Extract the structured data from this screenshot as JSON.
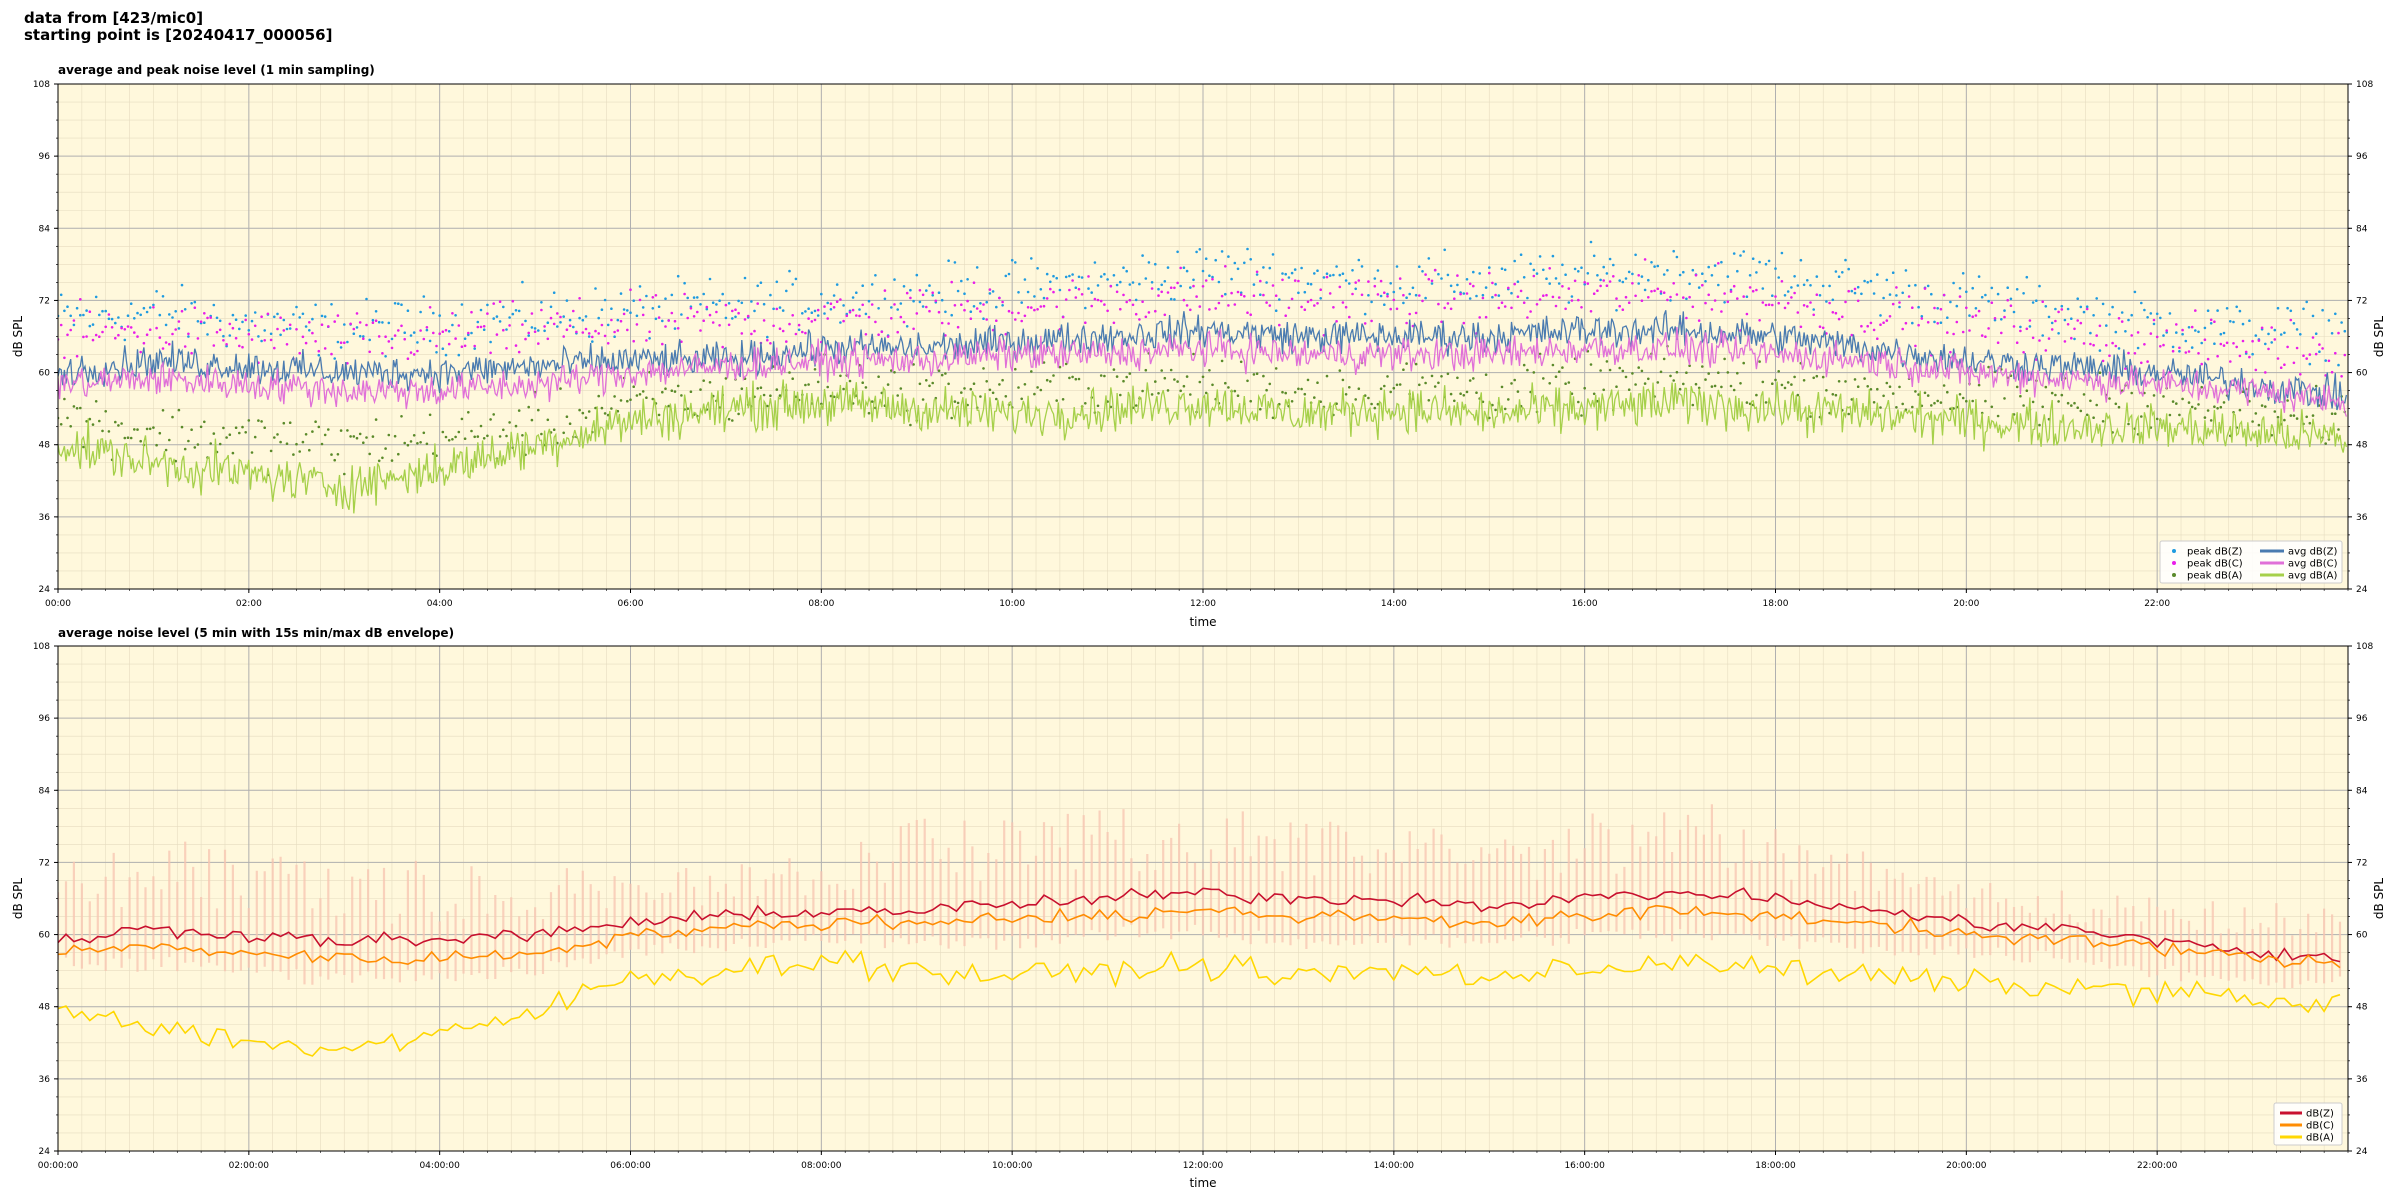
{
  "header": {
    "line1": "data from [423/mic0]",
    "line2": "starting point is [20240417_000056]"
  },
  "chart_data": [
    {
      "type": "line",
      "title": "average and peak noise level (1 min sampling)",
      "xlabel": "time",
      "ylabel": "dB SPL",
      "ylabel_right": "dB SPL",
      "xlim_hours": [
        0,
        24
      ],
      "ylim": [
        24,
        108
      ],
      "yticks": [
        24,
        36,
        48,
        60,
        72,
        84,
        96,
        108
      ],
      "x_tick_labels": [
        "00:00",
        "02:00",
        "04:00",
        "06:00",
        "08:00",
        "10:00",
        "12:00",
        "14:00",
        "16:00",
        "18:00",
        "20:00",
        "22:00"
      ],
      "grid": true,
      "legend_position": "lower right",
      "legend_columns": 2,
      "x": [
        0,
        1,
        2,
        3,
        4,
        5,
        6,
        7,
        8,
        9,
        10,
        11,
        12,
        13,
        14,
        15,
        16,
        17,
        18,
        19,
        20,
        21,
        22,
        23,
        24
      ],
      "series": [
        {
          "name": "peak dB(Z)",
          "kind": "scatter",
          "color": "#1f9be0",
          "values": [
            69,
            70,
            68,
            67,
            68,
            69,
            70,
            71,
            72,
            73,
            74,
            75,
            77,
            76,
            75,
            75,
            76,
            77,
            76,
            74,
            72,
            70,
            68,
            67,
            67
          ]
        },
        {
          "name": "peak dB(C)",
          "kind": "scatter",
          "color": "#e91ee9",
          "values": [
            66,
            67,
            66,
            65,
            66,
            67,
            68,
            68,
            69,
            70,
            71,
            72,
            73,
            72,
            72,
            72,
            73,
            73,
            72,
            70,
            68,
            67,
            65,
            64,
            64
          ]
        },
        {
          "name": "peak dB(A)",
          "kind": "scatter",
          "color": "#5a8a2a",
          "values": [
            53,
            50,
            49,
            48,
            49,
            51,
            55,
            56,
            58,
            57,
            57,
            58,
            58,
            57,
            58,
            57,
            58,
            59,
            58,
            57,
            56,
            55,
            55,
            53,
            52
          ]
        },
        {
          "name": "avg dB(Z)",
          "kind": "line",
          "color": "#4a7bb0",
          "values": [
            60,
            62,
            61,
            60,
            60,
            61,
            62,
            62,
            64,
            64,
            65,
            66,
            67,
            66,
            66,
            66,
            67,
            67,
            66,
            64,
            62,
            61,
            60,
            58,
            56
          ]
        },
        {
          "name": "avg dB(C)",
          "kind": "line",
          "color": "#e070d8",
          "values": [
            58,
            59,
            58,
            57,
            57,
            58,
            60,
            61,
            62,
            62,
            63,
            63,
            64,
            63,
            63,
            63,
            64,
            64,
            63,
            62,
            60,
            59,
            58,
            57,
            55
          ]
        },
        {
          "name": "avg dB(A)",
          "kind": "line",
          "color": "#a6d04a",
          "values": [
            48,
            45,
            43,
            41,
            44,
            48,
            52,
            54,
            55,
            54,
            53,
            54,
            55,
            53,
            54,
            53,
            54,
            55,
            54,
            53,
            52,
            51,
            51,
            50,
            49
          ]
        }
      ]
    },
    {
      "type": "line",
      "title": "average noise level (5 min with 15s min/max dB envelope)",
      "xlabel": "time",
      "ylabel": "dB SPL",
      "ylabel_right": "dB SPL",
      "xlim_hours": [
        0,
        24
      ],
      "ylim": [
        24,
        108
      ],
      "yticks": [
        24,
        36,
        48,
        60,
        72,
        84,
        96,
        108
      ],
      "x_tick_labels": [
        "00:00:00",
        "02:00:00",
        "04:00:00",
        "06:00:00",
        "08:00:00",
        "10:00:00",
        "12:00:00",
        "14:00:00",
        "16:00:00",
        "18:00:00",
        "20:00:00",
        "22:00:00"
      ],
      "grid": true,
      "legend_position": "lower right",
      "envelope": {
        "color": "#f7c4b0",
        "x": [
          0,
          1,
          2,
          3,
          4,
          5,
          6,
          7,
          8,
          9,
          10,
          11,
          12,
          13,
          14,
          15,
          16,
          17,
          18,
          19,
          20,
          21,
          22,
          23,
          24
        ],
        "min": [
          55,
          55,
          54,
          53,
          53,
          54,
          57,
          58,
          59,
          59,
          59,
          60,
          60,
          59,
          59,
          59,
          60,
          60,
          59,
          58,
          57,
          56,
          54,
          52,
          52
        ],
        "max": [
          72,
          78,
          76,
          72,
          73,
          72,
          70,
          72,
          74,
          80,
          80,
          82,
          83,
          80,
          80,
          76,
          80,
          84,
          78,
          74,
          70,
          68,
          68,
          66,
          64
        ]
      },
      "x": [
        0,
        1,
        2,
        3,
        4,
        5,
        6,
        7,
        8,
        9,
        10,
        11,
        12,
        13,
        14,
        15,
        16,
        17,
        18,
        19,
        20,
        21,
        22,
        23,
        24
      ],
      "series": [
        {
          "name": "dB(Z)",
          "color": "#c8102e",
          "values": [
            59,
            61,
            60,
            59,
            59,
            60,
            62,
            63,
            64,
            64,
            65,
            66,
            67,
            66,
            66,
            65,
            66,
            67,
            66,
            64,
            62,
            61,
            59,
            57,
            56
          ]
        },
        {
          "name": "dB(C)",
          "color": "#ff8c00",
          "values": [
            57,
            58,
            57,
            56,
            56,
            57,
            60,
            61,
            62,
            62,
            63,
            63,
            64,
            63,
            63,
            62,
            63,
            64,
            63,
            62,
            60,
            59,
            58,
            56,
            55
          ]
        },
        {
          "name": "dB(A)",
          "color": "#ffd700",
          "values": [
            48,
            45,
            42,
            41,
            43,
            47,
            53,
            54,
            56,
            54,
            53,
            54,
            55,
            53,
            54,
            53,
            54,
            56,
            54,
            53,
            52,
            51,
            51,
            49,
            48
          ]
        }
      ]
    }
  ]
}
